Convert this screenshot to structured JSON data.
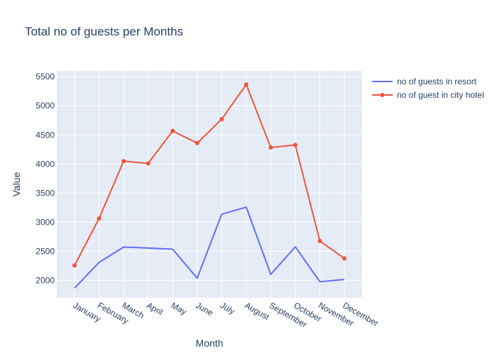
{
  "chart_data": {
    "type": "line",
    "title": "Total no of guests per Months",
    "xlabel": "Month",
    "ylabel": "Value",
    "categories": [
      "January",
      "February",
      "March",
      "April",
      "May",
      "June",
      "July",
      "August",
      "September",
      "October",
      "November",
      "December"
    ],
    "series": [
      {
        "name": "no of guests in resort",
        "color": "#636efa",
        "markers": false,
        "values": [
          1866,
          2308,
          2571,
          2554,
          2535,
          2037,
          3137,
          3257,
          2102,
          2575,
          1976,
          2014
        ]
      },
      {
        "name": "no of guest in city hotel",
        "color": "#ef553b",
        "markers": true,
        "values": [
          2254,
          3064,
          4048,
          4010,
          4568,
          4358,
          4770,
          5367,
          4283,
          4326,
          2676,
          2377
        ]
      }
    ],
    "yticks": [
      2000,
      2500,
      3000,
      3500,
      4000,
      4500,
      5000,
      5500
    ],
    "ylim": [
      1700,
      5600
    ],
    "grid": true,
    "legend": "top-right",
    "plot_bg": "#e5ecf6"
  }
}
